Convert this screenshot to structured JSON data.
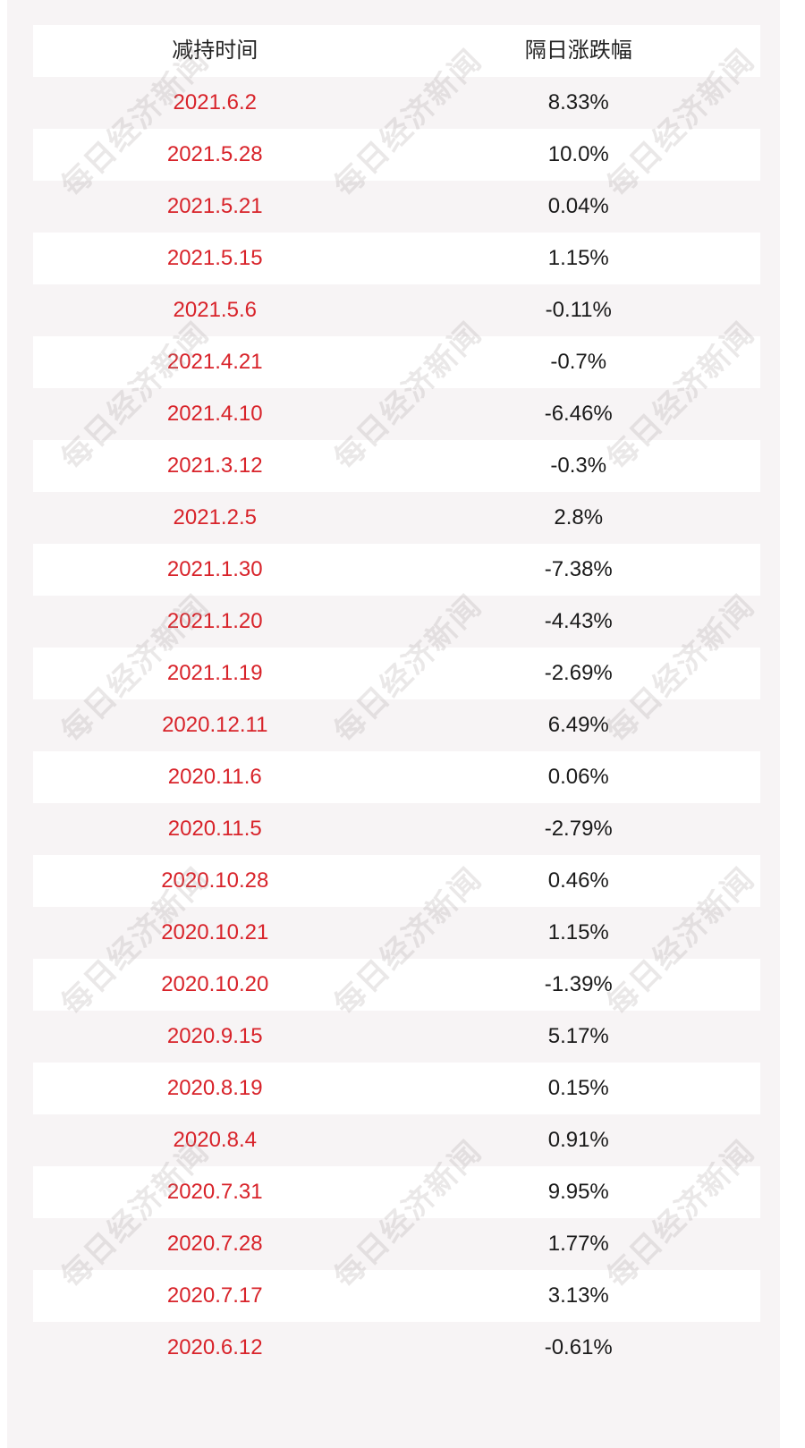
{
  "table": {
    "headers": [
      "减持时间",
      "隔日涨跌幅"
    ],
    "rows": [
      [
        "2021.6.2",
        "8.33%"
      ],
      [
        "2021.5.28",
        "10.0%"
      ],
      [
        "2021.5.21",
        "0.04%"
      ],
      [
        "2021.5.15",
        "1.15%"
      ],
      [
        "2021.5.6",
        "-0.11%"
      ],
      [
        "2021.4.21",
        "-0.7%"
      ],
      [
        "2021.4.10",
        "-6.46%"
      ],
      [
        "2021.3.12",
        "-0.3%"
      ],
      [
        "2021.2.5",
        "2.8%"
      ],
      [
        "2021.1.30",
        "-7.38%"
      ],
      [
        "2021.1.20",
        "-4.43%"
      ],
      [
        "2021.1.19",
        "-2.69%"
      ],
      [
        "2020.12.11",
        "6.49%"
      ],
      [
        "2020.11.6",
        "0.06%"
      ],
      [
        "2020.11.5",
        "-2.79%"
      ],
      [
        "2020.10.28",
        "0.46%"
      ],
      [
        "2020.10.21",
        "1.15%"
      ],
      [
        "2020.10.20",
        "-1.39%"
      ],
      [
        "2020.9.15",
        "5.17%"
      ],
      [
        "2020.8.19",
        "0.15%"
      ],
      [
        "2020.8.4",
        "0.91%"
      ],
      [
        "2020.7.31",
        "9.95%"
      ],
      [
        "2020.7.28",
        "1.77%"
      ],
      [
        "2020.7.17",
        "3.13%"
      ],
      [
        "2020.6.12",
        "-0.61%"
      ]
    ]
  },
  "watermark": "每日经济新闻",
  "colors": {
    "date_text": "#d8232a",
    "value_text": "#1a1a1a",
    "background": "#f7f4f5",
    "row_alt": "#ffffff"
  }
}
